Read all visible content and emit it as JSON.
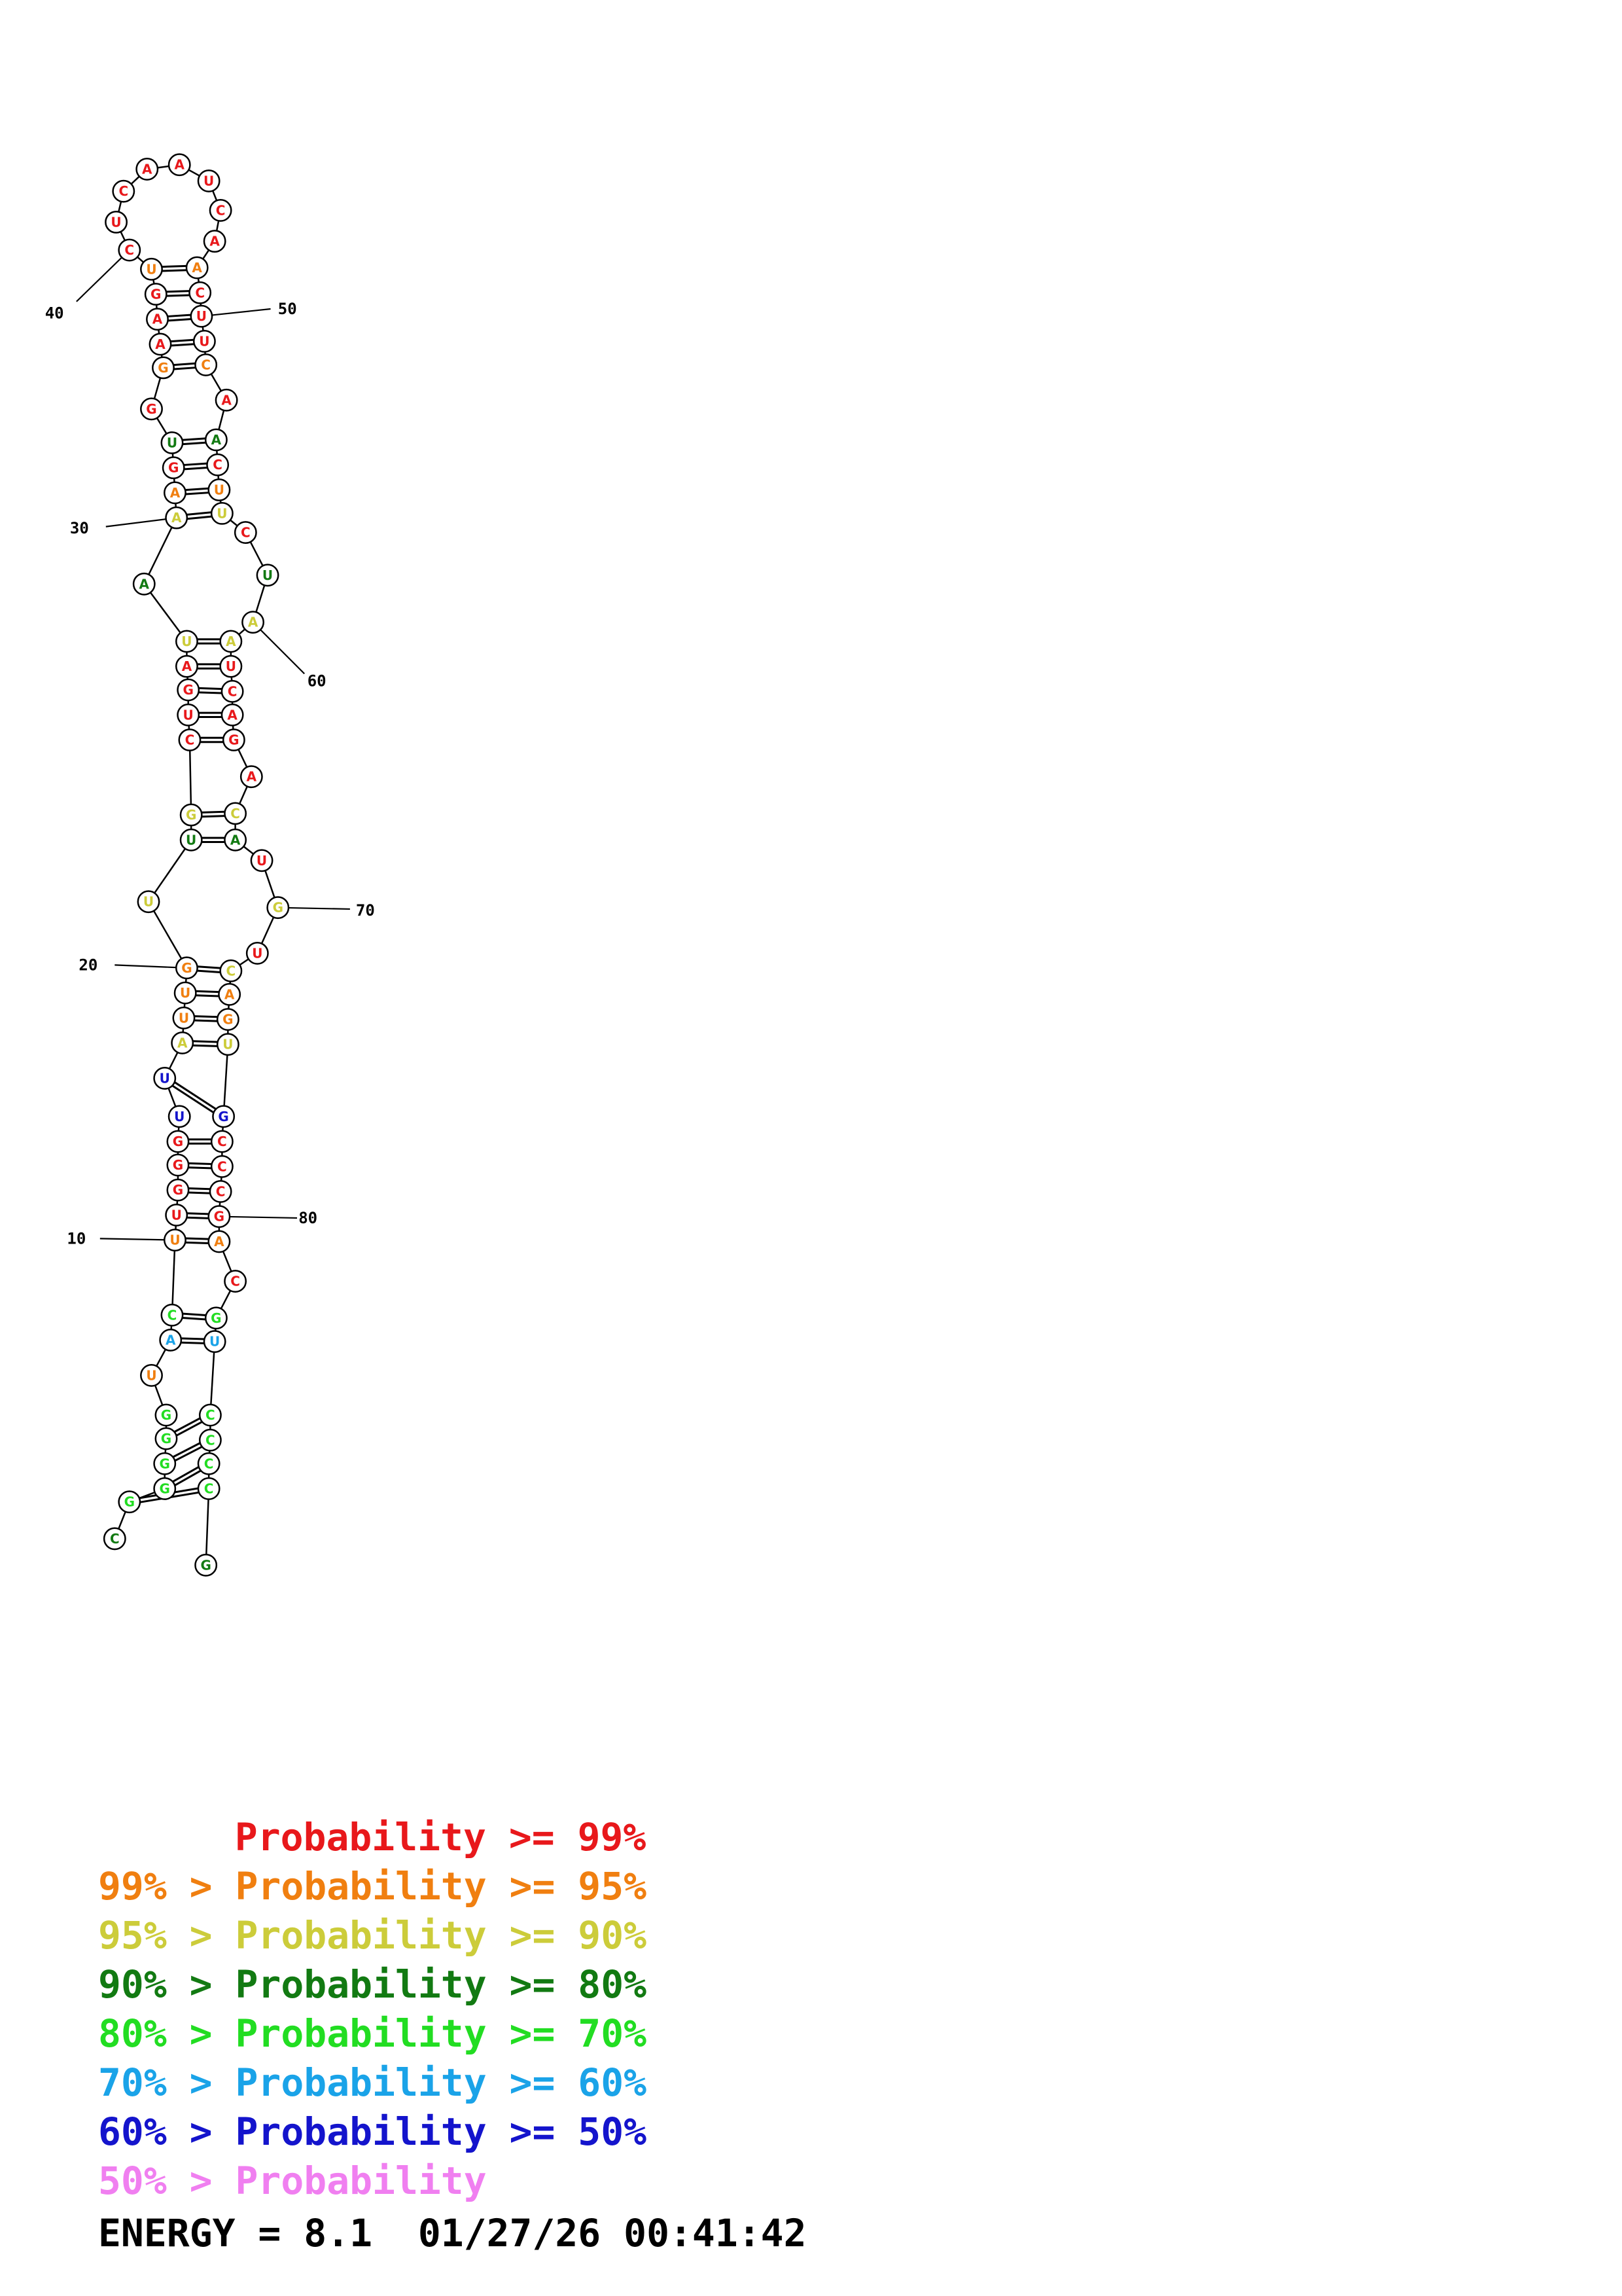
{
  "colors": {
    "red": "#e8181b",
    "orange": "#f07f10",
    "yellow": "#cccc3a",
    "darkgreen": "#127a12",
    "green": "#22dd22",
    "lightblue": "#1aa3e8",
    "blue": "#1414cc",
    "pink": "#f07ff0"
  },
  "bases": [
    {
      "n": 1,
      "b": "C",
      "c": "darkgreen"
    },
    {
      "n": 2,
      "b": "G",
      "c": "green"
    },
    {
      "n": 3,
      "b": "G",
      "c": "green"
    },
    {
      "n": 4,
      "b": "G",
      "c": "green"
    },
    {
      "n": 5,
      "b": "G",
      "c": "green"
    },
    {
      "n": 6,
      "b": "G",
      "c": "green"
    },
    {
      "n": 7,
      "b": "U",
      "c": "orange"
    },
    {
      "n": 8,
      "b": "A",
      "c": "lightblue"
    },
    {
      "n": 9,
      "b": "C",
      "c": "green"
    },
    {
      "n": 10,
      "b": "U",
      "c": "orange"
    },
    {
      "n": 11,
      "b": "U",
      "c": "red"
    },
    {
      "n": 12,
      "b": "G",
      "c": "red"
    },
    {
      "n": 13,
      "b": "G",
      "c": "red"
    },
    {
      "n": 14,
      "b": "G",
      "c": "red"
    },
    {
      "n": 15,
      "b": "U",
      "c": "blue"
    },
    {
      "n": 16,
      "b": "U",
      "c": "blue"
    },
    {
      "n": 17,
      "b": "A",
      "c": "yellow"
    },
    {
      "n": 18,
      "b": "U",
      "c": "orange"
    },
    {
      "n": 19,
      "b": "U",
      "c": "orange"
    },
    {
      "n": 20,
      "b": "G",
      "c": "orange"
    },
    {
      "n": 21,
      "b": "U",
      "c": "yellow"
    },
    {
      "n": 22,
      "b": "U",
      "c": "darkgreen"
    },
    {
      "n": 23,
      "b": "G",
      "c": "yellow"
    },
    {
      "n": 24,
      "b": "C",
      "c": "red"
    },
    {
      "n": 25,
      "b": "U",
      "c": "red"
    },
    {
      "n": 26,
      "b": "G",
      "c": "red"
    },
    {
      "n": 27,
      "b": "A",
      "c": "red"
    },
    {
      "n": 28,
      "b": "U",
      "c": "yellow"
    },
    {
      "n": 29,
      "b": "A",
      "c": "darkgreen"
    },
    {
      "n": 30,
      "b": "A",
      "c": "yellow"
    },
    {
      "n": 31,
      "b": "A",
      "c": "orange"
    },
    {
      "n": 32,
      "b": "G",
      "c": "red"
    },
    {
      "n": 33,
      "b": "U",
      "c": "darkgreen"
    },
    {
      "n": 34,
      "b": "G",
      "c": "red"
    },
    {
      "n": 35,
      "b": "G",
      "c": "orange"
    },
    {
      "n": 36,
      "b": "A",
      "c": "red"
    },
    {
      "n": 37,
      "b": "A",
      "c": "red"
    },
    {
      "n": 38,
      "b": "G",
      "c": "red"
    },
    {
      "n": 39,
      "b": "U",
      "c": "orange"
    },
    {
      "n": 40,
      "b": "C",
      "c": "red"
    },
    {
      "n": 41,
      "b": "U",
      "c": "red"
    },
    {
      "n": 42,
      "b": "C",
      "c": "red"
    },
    {
      "n": 43,
      "b": "A",
      "c": "red"
    },
    {
      "n": 44,
      "b": "A",
      "c": "red"
    },
    {
      "n": 45,
      "b": "U",
      "c": "red"
    },
    {
      "n": 46,
      "b": "C",
      "c": "red"
    },
    {
      "n": 47,
      "b": "A",
      "c": "red"
    },
    {
      "n": 48,
      "b": "A",
      "c": "orange"
    },
    {
      "n": 49,
      "b": "C",
      "c": "red"
    },
    {
      "n": 50,
      "b": "U",
      "c": "red"
    },
    {
      "n": 51,
      "b": "U",
      "c": "red"
    },
    {
      "n": 52,
      "b": "C",
      "c": "orange"
    },
    {
      "n": 53,
      "b": "A",
      "c": "red"
    },
    {
      "n": 54,
      "b": "A",
      "c": "darkgreen"
    },
    {
      "n": 55,
      "b": "C",
      "c": "red"
    },
    {
      "n": 56,
      "b": "U",
      "c": "orange"
    },
    {
      "n": 57,
      "b": "U",
      "c": "yellow"
    },
    {
      "n": 58,
      "b": "C",
      "c": "red"
    },
    {
      "n": 59,
      "b": "U",
      "c": "darkgreen"
    },
    {
      "n": 60,
      "b": "A",
      "c": "yellow"
    },
    {
      "n": 61,
      "b": "A",
      "c": "yellow"
    },
    {
      "n": 62,
      "b": "U",
      "c": "red"
    },
    {
      "n": 63,
      "b": "C",
      "c": "red"
    },
    {
      "n": 64,
      "b": "A",
      "c": "red"
    },
    {
      "n": 65,
      "b": "G",
      "c": "red"
    },
    {
      "n": 66,
      "b": "A",
      "c": "red"
    },
    {
      "n": 67,
      "b": "C",
      "c": "yellow"
    },
    {
      "n": 68,
      "b": "A",
      "c": "darkgreen"
    },
    {
      "n": 69,
      "b": "U",
      "c": "red"
    },
    {
      "n": 70,
      "b": "G",
      "c": "yellow"
    },
    {
      "n": 71,
      "b": "U",
      "c": "red"
    },
    {
      "n": 72,
      "b": "C",
      "c": "yellow"
    },
    {
      "n": 73,
      "b": "A",
      "c": "orange"
    },
    {
      "n": 74,
      "b": "G",
      "c": "orange"
    },
    {
      "n": 75,
      "b": "U",
      "c": "yellow"
    },
    {
      "n": 76,
      "b": "G",
      "c": "blue"
    },
    {
      "n": 77,
      "b": "C",
      "c": "red"
    },
    {
      "n": 78,
      "b": "C",
      "c": "red"
    },
    {
      "n": 79,
      "b": "C",
      "c": "red"
    },
    {
      "n": 80,
      "b": "G",
      "c": "red"
    },
    {
      "n": 81,
      "b": "A",
      "c": "orange"
    },
    {
      "n": 82,
      "b": "C",
      "c": "red"
    },
    {
      "n": 83,
      "b": "G",
      "c": "green"
    },
    {
      "n": 84,
      "b": "U",
      "c": "lightblue"
    },
    {
      "n": 85,
      "b": "C",
      "c": "green"
    },
    {
      "n": 86,
      "b": "C",
      "c": "green"
    },
    {
      "n": 87,
      "b": "C",
      "c": "green"
    },
    {
      "n": 88,
      "b": "C",
      "c": "green"
    },
    {
      "n": 89,
      "b": "G",
      "c": "darkgreen"
    }
  ],
  "pairs": [
    [
      2,
      88
    ],
    [
      3,
      87
    ],
    [
      4,
      86
    ],
    [
      5,
      85
    ],
    [
      8,
      84
    ],
    [
      9,
      83
    ],
    [
      10,
      81
    ],
    [
      11,
      80
    ],
    [
      12,
      79
    ],
    [
      13,
      78
    ],
    [
      14,
      77
    ],
    [
      16,
      76
    ],
    [
      17,
      75
    ],
    [
      18,
      74
    ],
    [
      19,
      73
    ],
    [
      20,
      72
    ],
    [
      22,
      68
    ],
    [
      23,
      67
    ],
    [
      24,
      65
    ],
    [
      25,
      64
    ],
    [
      26,
      63
    ],
    [
      27,
      62
    ],
    [
      28,
      61
    ],
    [
      30,
      57
    ],
    [
      31,
      56
    ],
    [
      32,
      55
    ],
    [
      33,
      54
    ],
    [
      35,
      52
    ],
    [
      36,
      51
    ],
    [
      37,
      50
    ],
    [
      38,
      49
    ],
    [
      39,
      48
    ]
  ],
  "position_labels": [
    {
      "n": 10,
      "text": "10"
    },
    {
      "n": 20,
      "text": "20"
    },
    {
      "n": 30,
      "text": "30"
    },
    {
      "n": 40,
      "text": "40"
    },
    {
      "n": 50,
      "text": "50"
    },
    {
      "n": 60,
      "text": "60"
    },
    {
      "n": 70,
      "text": "70"
    },
    {
      "n": 80,
      "text": "80"
    }
  ],
  "legend": [
    {
      "prefix": "    ",
      "text": "Probability >= 99%",
      "color": "red"
    },
    {
      "prefix": "99% > ",
      "text": "Probability >= 95%",
      "color": "orange"
    },
    {
      "prefix": "95% > ",
      "text": "Probability >= 90%",
      "color": "yellow"
    },
    {
      "prefix": "90% > ",
      "text": "Probability >= 80%",
      "color": "darkgreen"
    },
    {
      "prefix": "80% > ",
      "text": "Probability >= 70%",
      "color": "green"
    },
    {
      "prefix": "70% > ",
      "text": "Probability >= 60%",
      "color": "lightblue"
    },
    {
      "prefix": "60% > ",
      "text": "Probability >= 50%",
      "color": "blue"
    },
    {
      "prefix": "50% > ",
      "text": "Probability",
      "color": "pink"
    }
  ],
  "footer": {
    "energy_text": "ENERGY = 8.1",
    "timestamp": "01/27/26 00:41:42"
  }
}
